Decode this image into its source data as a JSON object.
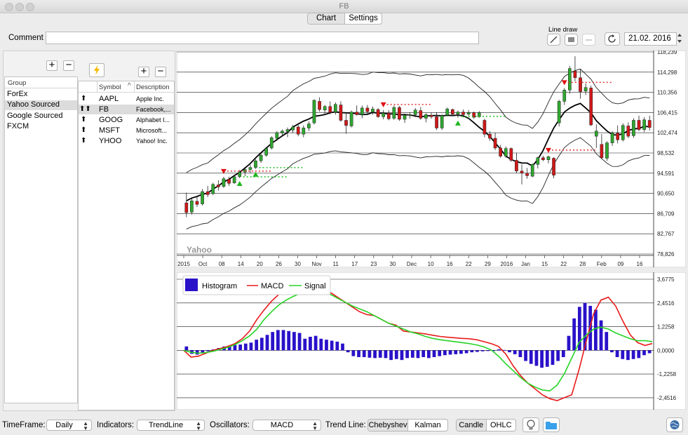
{
  "window": {
    "title": "FB"
  },
  "tabs": [
    {
      "label": "Chart",
      "selected": true
    },
    {
      "label": "Settings",
      "selected": false
    }
  ],
  "comment": {
    "label": "Comment",
    "value": ""
  },
  "line_draw": {
    "label": "Line draw"
  },
  "date_field": {
    "value": "21.02. 2016"
  },
  "groups": {
    "header": "Group",
    "items": [
      "ForEx",
      "Yahoo Sourced",
      "Google Sourced",
      "FXCM"
    ],
    "selected": "Yahoo Sourced"
  },
  "symbols": {
    "headers": {
      "symbol": "Symbol",
      "description": "Description"
    },
    "rows": [
      {
        "arrow": "⬆",
        "symbol": "AAPL",
        "description": "Apple Inc."
      },
      {
        "arrow": "⬆⬆",
        "symbol": "FB",
        "description": "Facebook,..."
      },
      {
        "arrow": "⬆",
        "symbol": "GOOG",
        "description": "Alphabet I..."
      },
      {
        "arrow": "⬆",
        "symbol": "MSFT",
        "description": "Microsoft..."
      },
      {
        "arrow": "⬆",
        "symbol": "YHOO",
        "description": "Yahoo! Inc."
      }
    ],
    "selected": "FB"
  },
  "price_chart": {
    "watermark": "Yahoo",
    "y_ticks": [
      "118,239",
      "114,298",
      "110,356",
      "106,415",
      "102,474",
      "98,532",
      "94,591",
      "90,650",
      "86,709",
      "82,767",
      "78,826"
    ],
    "x_ticks": [
      "2015",
      "Oct",
      "08",
      "14",
      "20",
      "26",
      "30",
      "Nov",
      "11",
      "17",
      "23",
      "30",
      "Dec",
      "10",
      "16",
      "22",
      "29",
      "2016",
      "Jan",
      "15",
      "22",
      "28",
      "Feb",
      "09",
      "16"
    ],
    "colors": {
      "up": "#2fa72f",
      "down": "#d01818",
      "signal_up": "#1fb61f",
      "signal_down": "#e01010",
      "support": "#21c321",
      "resistance": "#e33030"
    }
  },
  "macd_chart": {
    "legend": {
      "histogram": "Histogram",
      "macd": "MACD",
      "signal": "Signal"
    },
    "y_ticks": [
      "3,6775",
      "2,4516",
      "1,2258",
      "0,0000",
      "-1,2258",
      "-2,4516"
    ],
    "colors": {
      "histogram": "#2a12c9",
      "macd": "#e81a1a",
      "signal": "#25d425"
    }
  },
  "chart_data": [
    {
      "type": "candlestick",
      "title": "FB",
      "ylim": [
        78.826,
        118.239
      ],
      "x_range": [
        "2015-09-28",
        "2016-02-19"
      ],
      "candles": [
        [
          88.8,
          90.8,
          86.0,
          86.9
        ],
        [
          87.0,
          89.6,
          86.5,
          89.2
        ],
        [
          89.1,
          90.2,
          88.0,
          88.5
        ],
        [
          88.6,
          91.5,
          88.3,
          91.0
        ],
        [
          91.0,
          92.1,
          89.9,
          90.4
        ],
        [
          90.6,
          92.7,
          90.3,
          92.4
        ],
        [
          92.3,
          93.2,
          91.2,
          91.9
        ],
        [
          92.0,
          93.9,
          91.7,
          93.5
        ],
        [
          93.4,
          93.9,
          92.1,
          92.6
        ],
        [
          92.7,
          94.3,
          92.5,
          93.9
        ],
        [
          93.9,
          95.2,
          93.6,
          94.8
        ],
        [
          94.8,
          95.8,
          94.0,
          95.3
        ],
        [
          95.3,
          96.2,
          94.6,
          95.7
        ],
        [
          95.7,
          97.3,
          95.4,
          97.0
        ],
        [
          97.0,
          98.4,
          96.6,
          98.1
        ],
        [
          98.1,
          99.7,
          97.8,
          99.4
        ],
        [
          99.5,
          101.8,
          99.2,
          101.5
        ],
        [
          101.4,
          102.8,
          100.9,
          102.5
        ],
        [
          102.4,
          103.1,
          101.8,
          102.8
        ],
        [
          102.7,
          103.5,
          101.6,
          103.1
        ],
        [
          103.0,
          104.0,
          102.4,
          103.6
        ],
        [
          103.6,
          104.0,
          101.8,
          102.2
        ],
        [
          102.2,
          103.9,
          101.6,
          103.4
        ],
        [
          103.4,
          104.7,
          102.8,
          104.2
        ],
        [
          104.4,
          109.0,
          104.1,
          108.8
        ],
        [
          108.6,
          109.4,
          106.6,
          107.0
        ],
        [
          106.9,
          107.9,
          106.0,
          107.6
        ],
        [
          107.6,
          108.6,
          106.1,
          106.4
        ],
        [
          106.5,
          108.4,
          106.0,
          108.0
        ],
        [
          107.9,
          108.6,
          104.6,
          104.9
        ],
        [
          104.9,
          106.2,
          102.3,
          103.9
        ],
        [
          103.8,
          106.8,
          103.5,
          106.5
        ],
        [
          106.5,
          107.8,
          105.8,
          106.0
        ],
        [
          106.0,
          107.8,
          105.3,
          107.3
        ],
        [
          107.3,
          107.9,
          106.1,
          106.6
        ],
        [
          106.5,
          107.6,
          106.0,
          107.1
        ],
        [
          107.0,
          107.3,
          105.4,
          105.6
        ],
        [
          105.6,
          106.9,
          105.1,
          106.3
        ],
        [
          106.3,
          106.9,
          104.9,
          105.2
        ],
        [
          105.3,
          107.8,
          105.0,
          107.4
        ],
        [
          107.4,
          107.7,
          104.8,
          105.1
        ],
        [
          105.1,
          106.2,
          104.4,
          105.9
        ],
        [
          105.9,
          106.5,
          105.2,
          106.0
        ],
        [
          106.0,
          107.3,
          105.5,
          106.9
        ],
        [
          106.8,
          107.5,
          105.0,
          105.3
        ],
        [
          105.3,
          106.3,
          104.5,
          106.0
        ],
        [
          105.9,
          106.4,
          105.2,
          105.6
        ],
        [
          105.6,
          106.5,
          103.0,
          103.4
        ],
        [
          103.4,
          106.1,
          103.0,
          105.8
        ],
        [
          105.9,
          107.4,
          105.7,
          107.1
        ],
        [
          107.0,
          107.2,
          105.8,
          106.1
        ],
        [
          106.1,
          106.8,
          105.4,
          106.5
        ],
        [
          106.5,
          107.0,
          105.5,
          106.0
        ],
        [
          106.1,
          106.9,
          105.7,
          106.4
        ],
        [
          106.4,
          106.6,
          105.2,
          105.5
        ],
        [
          105.6,
          106.7,
          105.4,
          106.4
        ],
        [
          104.9,
          105.2,
          101.6,
          102.2
        ],
        [
          102.2,
          102.8,
          100.9,
          101.4
        ],
        [
          101.4,
          102.5,
          99.1,
          99.5
        ],
        [
          99.5,
          100.1,
          97.6,
          97.9
        ],
        [
          97.9,
          99.8,
          97.6,
          99.4
        ],
        [
          99.4,
          99.6,
          96.8,
          97.1
        ],
        [
          97.1,
          98.6,
          94.6,
          95.0
        ],
        [
          95.0,
          96.3,
          92.4,
          94.6
        ],
        [
          94.6,
          95.6,
          93.5,
          94.1
        ],
        [
          94.0,
          96.5,
          93.8,
          96.3
        ],
        [
          96.3,
          97.8,
          95.5,
          97.6
        ],
        [
          97.6,
          98.0,
          96.9,
          97.2
        ],
        [
          97.2,
          98.0,
          96.5,
          97.8
        ],
        [
          97.5,
          97.7,
          93.6,
          94.2
        ],
        [
          104.4,
          108.9,
          103.7,
          108.6
        ],
        [
          108.6,
          111.2,
          107.9,
          110.8
        ],
        [
          110.8,
          115.5,
          110.1,
          115.0
        ],
        [
          114.5,
          117.4,
          112.5,
          113.2
        ],
        [
          113.2,
          114.9,
          109.1,
          110.5
        ],
        [
          110.6,
          112.1,
          109.8,
          111.3
        ],
        [
          111.2,
          111.7,
          103.8,
          104.0
        ],
        [
          101.8,
          104.1,
          99.5,
          102.8
        ],
        [
          100.2,
          102.2,
          97.3,
          97.6
        ],
        [
          97.5,
          100.8,
          97.0,
          100.5
        ],
        [
          100.5,
          102.8,
          99.9,
          102.4
        ],
        [
          102.4,
          103.9,
          100.4,
          101.1
        ],
        [
          101.1,
          104.3,
          100.8,
          103.9
        ],
        [
          103.8,
          104.5,
          101.4,
          101.8
        ],
        [
          101.9,
          105.3,
          101.5,
          104.9
        ],
        [
          104.9,
          105.8,
          102.8,
          103.1
        ],
        [
          103.1,
          105.5,
          102.6,
          105.0
        ],
        [
          104.9,
          105.8,
          102.9,
          103.5
        ]
      ],
      "signals": [
        {
          "type": "sell",
          "candle": 7
        },
        {
          "type": "buy",
          "candle": 10
        },
        {
          "type": "buy",
          "candle": 13
        },
        {
          "type": "sell",
          "candle": 37
        },
        {
          "type": "buy",
          "candle": 51
        },
        {
          "type": "sell",
          "candle": 68
        },
        {
          "type": "sell",
          "candle": 71
        },
        {
          "type": "buy",
          "candle": 95
        },
        {
          "type": "sell",
          "candle": 112
        },
        {
          "type": "buy",
          "candle": 127
        }
      ]
    },
    {
      "type": "macd",
      "ylim": [
        -3.0,
        3.6775
      ],
      "histogram": [
        0.2,
        -0.18,
        -0.22,
        -0.15,
        -0.05,
        0.05,
        0.12,
        0.2,
        0.25,
        0.28,
        0.3,
        0.35,
        0.4,
        0.55,
        0.65,
        0.8,
        0.95,
        1.05,
        1.05,
        1.0,
        0.95,
        0.9,
        0.6,
        0.7,
        0.75,
        0.6,
        0.55,
        0.5,
        0.45,
        0.35,
        -0.1,
        -0.3,
        -0.35,
        -0.35,
        -0.38,
        -0.4,
        -0.38,
        -0.4,
        -0.5,
        -0.45,
        -0.5,
        -0.4,
        -0.38,
        -0.4,
        -0.35,
        -0.4,
        -0.35,
        -0.3,
        -0.25,
        -0.22,
        -0.2,
        -0.18,
        -0.15,
        -0.1,
        -0.08,
        -0.05,
        -0.03,
        -0.01,
        0.05,
        0.02,
        -0.1,
        -0.2,
        -0.35,
        -0.55,
        -0.7,
        -0.8,
        -0.9,
        -0.85,
        -0.75,
        -0.55,
        -0.35,
        0.75,
        1.65,
        2.25,
        2.45,
        2.3,
        2.1,
        1.55,
        0.95,
        -0.1,
        -0.35,
        -0.45,
        -0.5,
        -0.45,
        -0.4,
        -0.25,
        -0.15
      ],
      "macd": [
        0,
        -0.35,
        -0.3,
        -0.15,
        0.0,
        0.1,
        0.2,
        0.35,
        0.6,
        1.0,
        1.6,
        2.1,
        2.55,
        2.9,
        3.1,
        3.25,
        3.35,
        3.3,
        3.45,
        3.4,
        3.0,
        2.75,
        2.5,
        2.25,
        2.0,
        1.85,
        1.8,
        1.6,
        1.4,
        1.3,
        1.0,
        0.95,
        0.9,
        0.85,
        0.78,
        0.72,
        0.68,
        0.65,
        0.62,
        0.6,
        0.55,
        0.45,
        0.35,
        0.2,
        -0.2,
        -0.8,
        -1.3,
        -1.7,
        -2.0,
        -2.3,
        -2.5,
        -2.6,
        -2.45,
        -2.3,
        -1.0,
        0.5,
        1.9,
        2.6,
        2.75,
        2.3,
        1.5,
        0.8,
        0.4,
        0.25,
        0.35
      ],
      "signal": [
        0,
        -0.1,
        -0.15,
        -0.12,
        -0.05,
        0.05,
        0.15,
        0.3,
        0.5,
        0.75,
        1.1,
        1.6,
        2.0,
        2.35,
        2.6,
        2.8,
        2.95,
        3.05,
        3.15,
        3.1,
        2.9,
        2.7,
        2.5,
        2.3,
        2.15,
        2.0,
        1.8,
        1.6,
        1.4,
        1.25,
        1.1,
        0.95,
        0.85,
        0.72,
        0.62,
        0.55,
        0.5,
        0.45,
        0.4,
        0.35,
        0.28,
        0.18,
        0.02,
        -0.3,
        -0.7,
        -1.05,
        -1.4,
        -1.7,
        -1.9,
        -2.05,
        -2.1,
        -1.8,
        -1.2,
        -0.4,
        0.4,
        0.8,
        1.1,
        1.2,
        1.1,
        0.9,
        0.75,
        0.6,
        0.5,
        0.5,
        0.45
      ]
    }
  ],
  "bottom_bar": {
    "timeframe_label": "TimeFrame:",
    "timeframe_value": "Daily",
    "indicators_label": "Indicators:",
    "indicators_value": "TrendLine",
    "oscillators_label": "Oscillators:",
    "oscillators_value": "MACD",
    "trendline_label": "Trend Line:",
    "trendline_options": [
      "Chebyshev",
      "Kalman"
    ],
    "chart_type_options": [
      "Candle",
      "OHLC"
    ]
  }
}
